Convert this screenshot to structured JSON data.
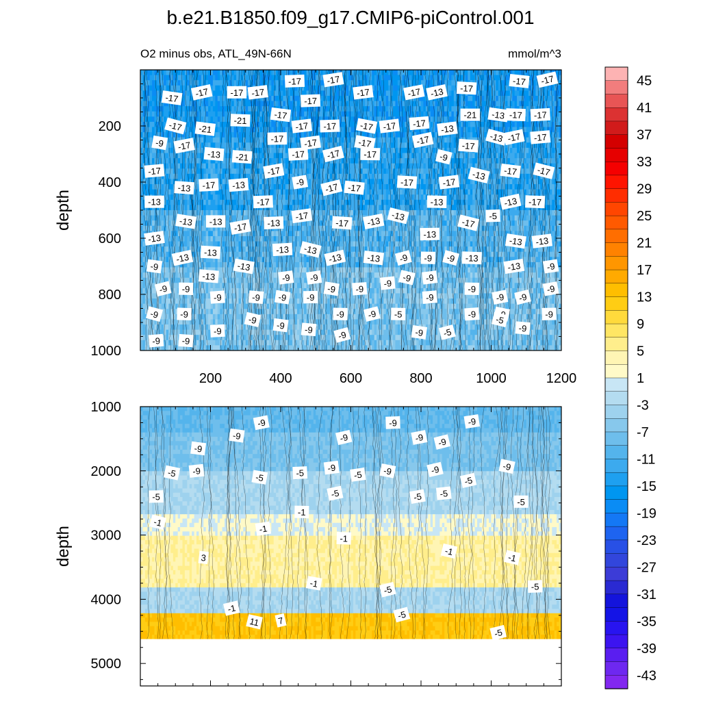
{
  "title": "b.e21.B1850.f09_g17.CMIP6-piControl.001",
  "chart_data": [
    {
      "type": "heatmap",
      "panel": "upper",
      "subtitle_left": "O2 minus obs, ATL_49N-66N",
      "subtitle_right": "mmol/m^3",
      "xlabel": "",
      "ylabel": "depth",
      "xlim": [
        0,
        1200
      ],
      "ylim": [
        1000,
        0
      ],
      "x_ticks": [
        200,
        400,
        600,
        800,
        1000,
        1200
      ],
      "y_ticks": [
        200,
        400,
        600,
        800,
        1000
      ],
      "depth_bands": [
        {
          "from": 0,
          "to": 250,
          "value": -17
        },
        {
          "from": 250,
          "to": 500,
          "value": -15
        },
        {
          "from": 500,
          "to": 700,
          "value": -12
        },
        {
          "from": 700,
          "to": 1000,
          "value": -9
        }
      ],
      "contour_labels": [
        {
          "text": "-17",
          "x": 440,
          "y": 40
        },
        {
          "text": "-17",
          "x": 550,
          "y": 35
        },
        {
          "text": "-17",
          "x": 1080,
          "y": 40
        },
        {
          "text": "-17",
          "x": 1160,
          "y": 35
        },
        {
          "text": "-17",
          "x": 90,
          "y": 100
        },
        {
          "text": "-17",
          "x": 175,
          "y": 80
        },
        {
          "text": "-17",
          "x": 275,
          "y": 80
        },
        {
          "text": "-17",
          "x": 335,
          "y": 80
        },
        {
          "text": "-17",
          "x": 635,
          "y": 80
        },
        {
          "text": "-17",
          "x": 780,
          "y": 80
        },
        {
          "text": "-13",
          "x": 845,
          "y": 80
        },
        {
          "text": "-17",
          "x": 930,
          "y": 65
        },
        {
          "text": "-17",
          "x": 485,
          "y": 110
        },
        {
          "text": "-17",
          "x": 400,
          "y": 160
        },
        {
          "text": "-21",
          "x": 940,
          "y": 160
        },
        {
          "text": "-13",
          "x": 1020,
          "y": 160
        },
        {
          "text": "-17",
          "x": 1070,
          "y": 160
        },
        {
          "text": "-17",
          "x": 1140,
          "y": 160
        },
        {
          "text": "-21",
          "x": 285,
          "y": 180
        },
        {
          "text": "-17",
          "x": 100,
          "y": 200
        },
        {
          "text": "-21",
          "x": 185,
          "y": 210
        },
        {
          "text": "-17",
          "x": 460,
          "y": 200
        },
        {
          "text": "-17",
          "x": 540,
          "y": 200
        },
        {
          "text": "-17",
          "x": 645,
          "y": 200
        },
        {
          "text": "-17",
          "x": 710,
          "y": 200
        },
        {
          "text": "-17",
          "x": 795,
          "y": 190
        },
        {
          "text": "-13",
          "x": 875,
          "y": 210
        },
        {
          "text": "-13",
          "x": 1015,
          "y": 240
        },
        {
          "text": "-17",
          "x": 1065,
          "y": 240
        },
        {
          "text": "-17",
          "x": 1140,
          "y": 240
        },
        {
          "text": "-9",
          "x": 55,
          "y": 260
        },
        {
          "text": "-17",
          "x": 125,
          "y": 270
        },
        {
          "text": "-17",
          "x": 390,
          "y": 245
        },
        {
          "text": "-17",
          "x": 485,
          "y": 260
        },
        {
          "text": "-17",
          "x": 640,
          "y": 260
        },
        {
          "text": "-17",
          "x": 805,
          "y": 250
        },
        {
          "text": "-17",
          "x": 935,
          "y": 270
        },
        {
          "text": "-13",
          "x": 210,
          "y": 300
        },
        {
          "text": "-21",
          "x": 290,
          "y": 310
        },
        {
          "text": "-17",
          "x": 450,
          "y": 300
        },
        {
          "text": "-17",
          "x": 550,
          "y": 300
        },
        {
          "text": "-17",
          "x": 655,
          "y": 300
        },
        {
          "text": "-9",
          "x": 865,
          "y": 310
        },
        {
          "text": "-17",
          "x": 40,
          "y": 360
        },
        {
          "text": "-17",
          "x": 380,
          "y": 360
        },
        {
          "text": "-17",
          "x": 1055,
          "y": 360
        },
        {
          "text": "-17",
          "x": 1150,
          "y": 360
        },
        {
          "text": "-13",
          "x": 965,
          "y": 375
        },
        {
          "text": "-9",
          "x": 455,
          "y": 400
        },
        {
          "text": "-17",
          "x": 195,
          "y": 410
        },
        {
          "text": "-13",
          "x": 280,
          "y": 410
        },
        {
          "text": "-13",
          "x": 125,
          "y": 420
        },
        {
          "text": "-17",
          "x": 545,
          "y": 420
        },
        {
          "text": "-17",
          "x": 610,
          "y": 420
        },
        {
          "text": "-17",
          "x": 760,
          "y": 400
        },
        {
          "text": "-17",
          "x": 880,
          "y": 400
        },
        {
          "text": "-13",
          "x": 40,
          "y": 470
        },
        {
          "text": "-17",
          "x": 350,
          "y": 470
        },
        {
          "text": "-13",
          "x": 845,
          "y": 470
        },
        {
          "text": "-13",
          "x": 1055,
          "y": 470
        },
        {
          "text": "-17",
          "x": 1125,
          "y": 470
        },
        {
          "text": "-17",
          "x": 460,
          "y": 520
        },
        {
          "text": "-13",
          "x": 735,
          "y": 520
        },
        {
          "text": "-5",
          "x": 1005,
          "y": 520
        },
        {
          "text": "-13",
          "x": 130,
          "y": 540
        },
        {
          "text": "-13",
          "x": 215,
          "y": 540
        },
        {
          "text": "-13",
          "x": 380,
          "y": 545
        },
        {
          "text": "-17",
          "x": 575,
          "y": 545
        },
        {
          "text": "-13",
          "x": 665,
          "y": 540
        },
        {
          "text": "-17",
          "x": 935,
          "y": 545
        },
        {
          "text": "-17",
          "x": 285,
          "y": 560
        },
        {
          "text": "-13",
          "x": 40,
          "y": 600
        },
        {
          "text": "-13",
          "x": 825,
          "y": 585
        },
        {
          "text": "-13",
          "x": 1070,
          "y": 610
        },
        {
          "text": "-13",
          "x": 1145,
          "y": 610
        },
        {
          "text": "-13",
          "x": 405,
          "y": 640
        },
        {
          "text": "-13",
          "x": 485,
          "y": 640
        },
        {
          "text": "-13",
          "x": 200,
          "y": 650
        },
        {
          "text": "-13",
          "x": 120,
          "y": 670
        },
        {
          "text": "-13",
          "x": 555,
          "y": 670
        },
        {
          "text": "-13",
          "x": 665,
          "y": 670
        },
        {
          "text": "-9",
          "x": 750,
          "y": 670
        },
        {
          "text": "-9",
          "x": 820,
          "y": 670
        },
        {
          "text": "-9",
          "x": 885,
          "y": 670
        },
        {
          "text": "-13",
          "x": 945,
          "y": 670
        },
        {
          "text": "-9",
          "x": 40,
          "y": 700
        },
        {
          "text": "-13",
          "x": 295,
          "y": 700
        },
        {
          "text": "-13",
          "x": 1065,
          "y": 700
        },
        {
          "text": "-9",
          "x": 1170,
          "y": 700
        },
        {
          "text": "-13",
          "x": 195,
          "y": 735
        },
        {
          "text": "-9",
          "x": 415,
          "y": 740
        },
        {
          "text": "-9",
          "x": 495,
          "y": 740
        },
        {
          "text": "-9",
          "x": 760,
          "y": 740
        },
        {
          "text": "-9",
          "x": 825,
          "y": 740
        },
        {
          "text": "-9",
          "x": 705,
          "y": 760
        },
        {
          "text": "-9",
          "x": 65,
          "y": 780
        },
        {
          "text": "-9",
          "x": 130,
          "y": 780
        },
        {
          "text": "-9",
          "x": 545,
          "y": 780
        },
        {
          "text": "-9",
          "x": 625,
          "y": 780
        },
        {
          "text": "-9",
          "x": 945,
          "y": 780
        },
        {
          "text": "-9",
          "x": 1170,
          "y": 780
        },
        {
          "text": "-9",
          "x": 220,
          "y": 810
        },
        {
          "text": "-9",
          "x": 330,
          "y": 810
        },
        {
          "text": "-9",
          "x": 405,
          "y": 810
        },
        {
          "text": "-9",
          "x": 485,
          "y": 810
        },
        {
          "text": "-9",
          "x": 825,
          "y": 810
        },
        {
          "text": "-9",
          "x": 1025,
          "y": 810
        },
        {
          "text": "-9",
          "x": 1090,
          "y": 810
        },
        {
          "text": "-9",
          "x": 40,
          "y": 870
        },
        {
          "text": "-9",
          "x": 125,
          "y": 870
        },
        {
          "text": "-9",
          "x": 570,
          "y": 870
        },
        {
          "text": "-9",
          "x": 660,
          "y": 870
        },
        {
          "text": "-5",
          "x": 735,
          "y": 870
        },
        {
          "text": "-9",
          "x": 945,
          "y": 870
        },
        {
          "text": "-9",
          "x": 1030,
          "y": 870
        },
        {
          "text": "-9",
          "x": 1165,
          "y": 870
        },
        {
          "text": "-9",
          "x": 320,
          "y": 890
        },
        {
          "text": "-5",
          "x": 1025,
          "y": 890
        },
        {
          "text": "-9",
          "x": 400,
          "y": 910
        },
        {
          "text": "-9",
          "x": 480,
          "y": 925
        },
        {
          "text": "-9",
          "x": 1090,
          "y": 920
        },
        {
          "text": "-9",
          "x": 795,
          "y": 935
        },
        {
          "text": "-5",
          "x": 875,
          "y": 935
        },
        {
          "text": "-9",
          "x": 220,
          "y": 930
        },
        {
          "text": "-9",
          "x": 575,
          "y": 945
        },
        {
          "text": "-9",
          "x": 45,
          "y": 965
        },
        {
          "text": "-9",
          "x": 130,
          "y": 965
        }
      ]
    },
    {
      "type": "heatmap",
      "panel": "lower",
      "xlabel": "",
      "ylabel": "depth",
      "xlim": [
        0,
        1200
      ],
      "ylim": [
        5350,
        1000
      ],
      "y_ticks": [
        1000,
        2000,
        3000,
        4000,
        5000
      ],
      "depth_bands": [
        {
          "from": 1000,
          "to": 1400,
          "value": -11
        },
        {
          "from": 1400,
          "to": 2000,
          "value": -9
        },
        {
          "from": 2000,
          "to": 2700,
          "value": -5
        },
        {
          "from": 2700,
          "to": 3000,
          "value": -1
        },
        {
          "from": 3000,
          "to": 3800,
          "value": 3
        },
        {
          "from": 3800,
          "to": 4200,
          "value": -5
        },
        {
          "from": 4200,
          "to": 4600,
          "value": 11
        }
      ],
      "no_data_below": 4620,
      "contour_labels": [
        {
          "text": "-9",
          "x": 345,
          "y": 1250
        },
        {
          "text": "-9",
          "x": 720,
          "y": 1250
        },
        {
          "text": "-9",
          "x": 945,
          "y": 1230
        },
        {
          "text": "-9",
          "x": 275,
          "y": 1450
        },
        {
          "text": "-9",
          "x": 580,
          "y": 1480
        },
        {
          "text": "-9",
          "x": 795,
          "y": 1480
        },
        {
          "text": "-9",
          "x": 860,
          "y": 1550
        },
        {
          "text": "-9",
          "x": 165,
          "y": 1650
        },
        {
          "text": "-9",
          "x": 160,
          "y": 2000
        },
        {
          "text": "-9",
          "x": 545,
          "y": 1950
        },
        {
          "text": "-9",
          "x": 705,
          "y": 2000
        },
        {
          "text": "-9",
          "x": 840,
          "y": 1980
        },
        {
          "text": "-9",
          "x": 1045,
          "y": 1930
        },
        {
          "text": "-5",
          "x": 90,
          "y": 2030
        },
        {
          "text": "-5",
          "x": 340,
          "y": 2100
        },
        {
          "text": "-5",
          "x": 455,
          "y": 2030
        },
        {
          "text": "-5",
          "x": 620,
          "y": 2060
        },
        {
          "text": "-5",
          "x": 935,
          "y": 2150
        },
        {
          "text": "-5",
          "x": 555,
          "y": 2350
        },
        {
          "text": "-5",
          "x": 865,
          "y": 2350
        },
        {
          "text": "-5",
          "x": 790,
          "y": 2400
        },
        {
          "text": "-5",
          "x": 1085,
          "y": 2480
        },
        {
          "text": "-5",
          "x": 45,
          "y": 2400
        },
        {
          "text": "-1",
          "x": 460,
          "y": 2640
        },
        {
          "text": "-1",
          "x": 50,
          "y": 2800
        },
        {
          "text": "-1",
          "x": 350,
          "y": 2900
        },
        {
          "text": "-1",
          "x": 580,
          "y": 3050
        },
        {
          "text": "-1",
          "x": 880,
          "y": 3250
        },
        {
          "text": "-1",
          "x": 1060,
          "y": 3350
        },
        {
          "text": "3",
          "x": 180,
          "y": 3350
        },
        {
          "text": "-1",
          "x": 495,
          "y": 3750
        },
        {
          "text": "-5",
          "x": 705,
          "y": 3850
        },
        {
          "text": "-5",
          "x": 1125,
          "y": 3800
        },
        {
          "text": "-1",
          "x": 260,
          "y": 4140
        },
        {
          "text": "11",
          "x": 325,
          "y": 4350
        },
        {
          "text": "7",
          "x": 400,
          "y": 4330
        },
        {
          "text": "-5",
          "x": 745,
          "y": 4240
        },
        {
          "text": "-5",
          "x": 1020,
          "y": 4520
        }
      ]
    },
    {
      "type": "colorbar",
      "labels": [
        "45",
        "41",
        "37",
        "33",
        "29",
        "25",
        "21",
        "17",
        "13",
        "9",
        "5",
        "1",
        "-3",
        "-7",
        "-11",
        "-15",
        "-19",
        "-23",
        "-27",
        "-31",
        "-35",
        "-39",
        "-43"
      ],
      "levels": [
        -47,
        -45,
        -43,
        -41,
        -39,
        -37,
        -35,
        -33,
        -31,
        -29,
        -27,
        -25,
        -23,
        -21,
        -19,
        -17,
        -15,
        -13,
        -11,
        -9,
        -7,
        -5,
        -3,
        -1,
        1,
        3,
        5,
        7,
        9,
        11,
        13,
        15,
        17,
        19,
        21,
        23,
        25,
        27,
        29,
        31,
        33,
        35,
        37,
        39,
        41,
        43,
        45,
        47,
        49
      ],
      "colors_top_to_bottom": [
        "#fdb3b3",
        "#f27d7d",
        "#e85555",
        "#dc3232",
        "#d11b1b",
        "#d40000",
        "#e60000",
        "#f50000",
        "#ff1400",
        "#ff2d00",
        "#ff4600",
        "#ff5a00",
        "#ff6e00",
        "#ff8200",
        "#ff9600",
        "#ffaa00",
        "#ffbe00",
        "#ffcd14",
        "#ffda3c",
        "#ffe664",
        "#ffee8c",
        "#fff5b4",
        "#fffac8",
        "#c8e6f5",
        "#b4dcf0",
        "#9ed2ee",
        "#87c8ec",
        "#6ebeec",
        "#54b4ec",
        "#3caaee",
        "#1ea0f0",
        "#0096f0",
        "#0a8cf5",
        "#1478f5",
        "#1e64f0",
        "#2850e6",
        "#3246dc",
        "#3c3cd7",
        "#2a2ad2",
        "#1414dc",
        "#1414e6",
        "#2814f0",
        "#3c14f0",
        "#5a1ef0",
        "#6e28f0",
        "#8228f0"
      ]
    }
  ]
}
